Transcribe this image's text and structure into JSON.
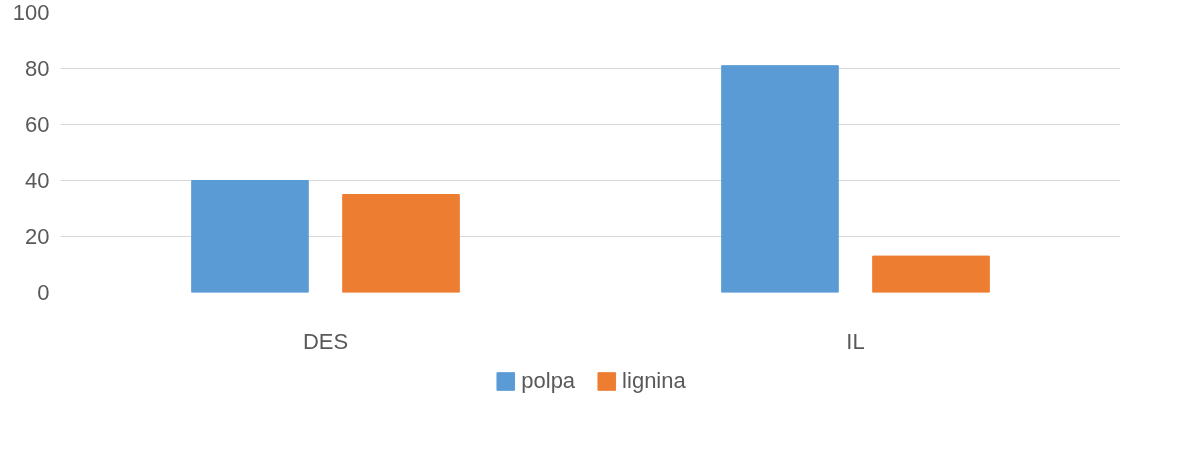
{
  "chart_data": {
    "type": "bar",
    "categories": [
      "DES",
      "IL"
    ],
    "series": [
      {
        "name": "polpa",
        "color": "#5b9bd5",
        "values": [
          40,
          81
        ]
      },
      {
        "name": "lignina",
        "color": "#ed7d31",
        "values": [
          35,
          13
        ]
      }
    ],
    "ylim": [
      0,
      100
    ],
    "yticks": [
      0,
      20,
      40,
      60,
      80,
      100
    ],
    "grid": "y",
    "legend": "bottom"
  }
}
